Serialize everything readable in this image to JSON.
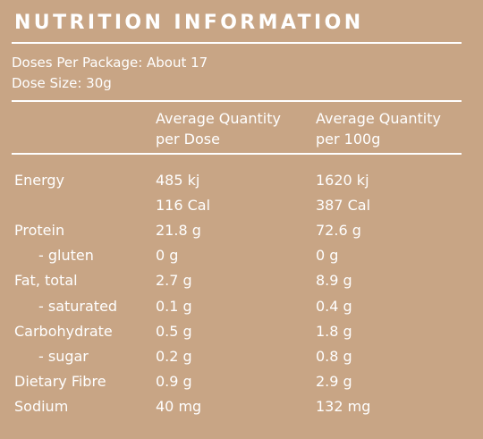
{
  "title": "NUTRITION INFORMATION",
  "doses_per_package": "Doses Per Package: About 17",
  "dose_size": "Dose Size: 30g",
  "columns": [
    {
      "line1": "Average Quantity",
      "line2": "per Dose"
    },
    {
      "line1": "Average Quantity",
      "line2": "per 100g"
    }
  ],
  "rows": [
    {
      "label": "Energy",
      "per_dose": "485 kj",
      "per_100g": "1620 kj"
    },
    {
      "label": "",
      "per_dose": "116 Cal",
      "per_100g": "387 Cal"
    },
    {
      "label": "Protein",
      "per_dose": "21.8 g",
      "per_100g": "72.6 g"
    },
    {
      "label": "- gluten",
      "per_dose": "0 g",
      "per_100g": "0 g"
    },
    {
      "label": "Fat, total",
      "per_dose": "2.7 g",
      "per_100g": "8.9 g"
    },
    {
      "label": "- saturated",
      "per_dose": "0.1 g",
      "per_100g": "0.4 g"
    },
    {
      "label": "Carbohydrate",
      "per_dose": "0.5 g",
      "per_100g": "1.8 g"
    },
    {
      "label": "- sugar",
      "per_dose": "0.2 g",
      "per_100g": "0.8 g"
    },
    {
      "label": "Dietary Fibre",
      "per_dose": "0.9 g",
      "per_100g": "2.9 g"
    },
    {
      "label": "Sodium",
      "per_dose": "40 mg",
      "per_100g": "132 mg"
    }
  ],
  "colors": {
    "background": "#c8a585",
    "text": "#ffffff"
  }
}
